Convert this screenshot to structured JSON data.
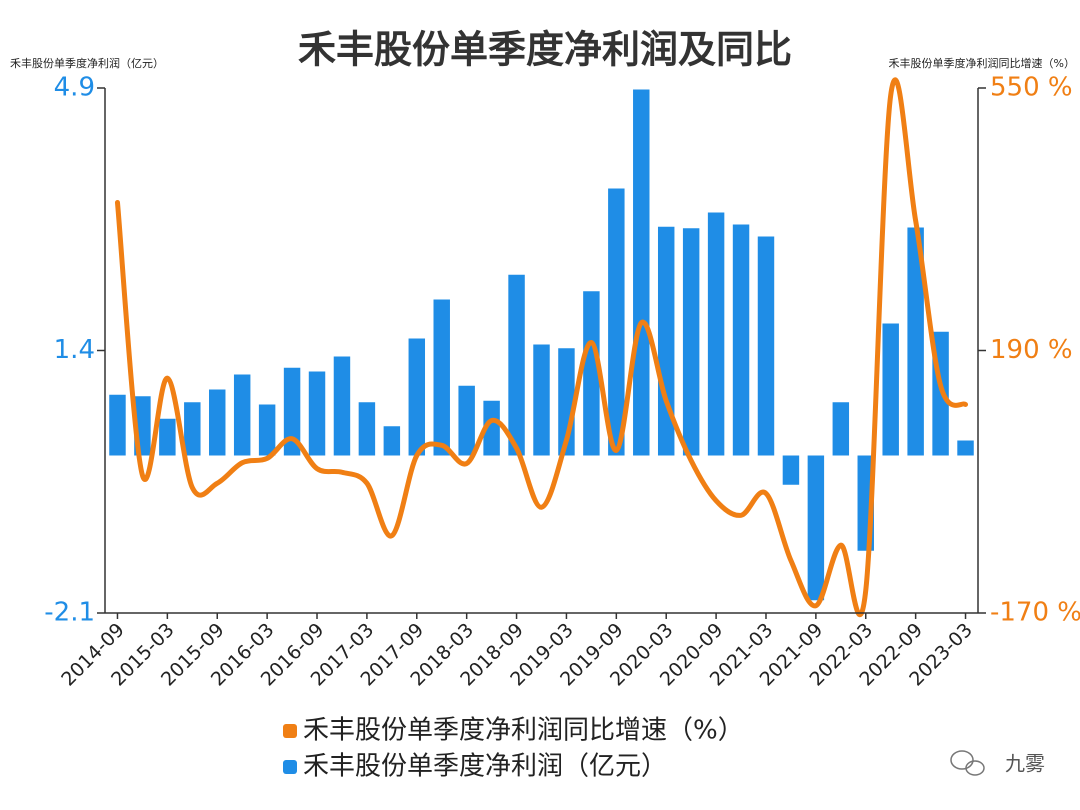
{
  "chart_data": {
    "type": "bar-line",
    "title": "禾丰股份单季度净利润及同比",
    "y_label": "禾丰股份单季度净利润（亿元）",
    "y2_label": "禾丰股份单季度净利润同比增速（%）",
    "categories": [
      "2014-09",
      null,
      "2015-03",
      null,
      "2015-09",
      null,
      "2016-03",
      null,
      "2016-09",
      null,
      "2017-03",
      null,
      "2017-09",
      null,
      "2018-03",
      null,
      "2018-09",
      null,
      "2019-03",
      null,
      "2019-09",
      null,
      "2020-03",
      null,
      "2020-09",
      null,
      "2021-03",
      null,
      "2021-09",
      null,
      "2022-03",
      null,
      "2022-09",
      null,
      "2023-03"
    ],
    "series": [
      {
        "name": "禾丰股份单季度净利润同比增速（%）",
        "type": "line",
        "axis": "y2",
        "color": "#f07f14",
        "values": [
          393,
          19,
          152,
          2,
          8,
          36,
          42,
          69,
          28,
          23,
          8,
          -64,
          46,
          60,
          35,
          94,
          56,
          -25,
          67,
          201,
          53,
          228,
          121,
          39,
          -16,
          -36,
          -6,
          -98,
          -160,
          -77,
          -139,
          540,
          368,
          142,
          116
        ]
      },
      {
        "name": "禾丰股份单季度净利润（亿元）",
        "type": "bar",
        "axis": "y",
        "color": "#1f8de6",
        "values": [
          0.81,
          0.79,
          0.49,
          0.71,
          0.88,
          1.08,
          0.68,
          1.17,
          1.12,
          1.32,
          0.71,
          0.39,
          1.56,
          2.08,
          0.93,
          0.73,
          2.41,
          1.48,
          1.43,
          2.19,
          3.56,
          4.88,
          3.05,
          3.03,
          3.24,
          3.08,
          2.92,
          -0.39,
          -1.93,
          0.71,
          -1.27,
          1.76,
          3.04,
          1.65,
          0.2
        ]
      }
    ],
    "ylim": [
      -2.1,
      4.9
    ],
    "yticks": [
      -2.1,
      1.4,
      4.9
    ],
    "y2lim": [
      -170,
      550
    ],
    "y2ticks": [
      {
        "value": -170,
        "label": "-170 %"
      },
      {
        "value": 190,
        "label": "190 %"
      },
      {
        "value": 550,
        "label": "550 %"
      }
    ],
    "watermark": "九雾"
  }
}
